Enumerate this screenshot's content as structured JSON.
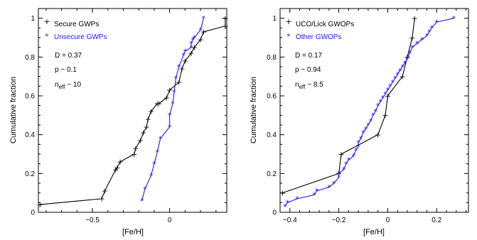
{
  "chart_data": [
    {
      "type": "line",
      "xlabel": "[Fe/H]",
      "ylabel": "Cumulative fraction",
      "xlim": [
        -0.85,
        0.37
      ],
      "ylim": [
        0,
        1.05
      ],
      "x_ticks": [
        -0.5,
        0
      ],
      "x_tick_labels": [
        "−0.5",
        "0"
      ],
      "y_ticks": [
        0,
        0.2,
        0.4,
        0.6,
        0.8,
        1
      ],
      "y_tick_labels": [
        "0",
        "0.2",
        "0.4",
        "0.6",
        "0.8",
        "1"
      ],
      "series": [
        {
          "name": "Secure GWPs",
          "marker": "+",
          "color": "#000000",
          "x": [
            -0.84,
            -0.44,
            -0.42,
            -0.35,
            -0.34,
            -0.32,
            -0.23,
            -0.22,
            -0.19,
            -0.17,
            -0.15,
            -0.14,
            -0.12,
            -0.08,
            -0.07,
            -0.02,
            0.0,
            0.06,
            0.08,
            0.1,
            0.14,
            0.16,
            0.2,
            0.22,
            0.36,
            0.36
          ],
          "y": [
            0.04,
            0.07,
            0.11,
            0.22,
            0.23,
            0.26,
            0.3,
            0.33,
            0.37,
            0.41,
            0.44,
            0.48,
            0.52,
            0.56,
            0.56,
            0.59,
            0.63,
            0.67,
            0.74,
            0.78,
            0.82,
            0.85,
            0.89,
            0.93,
            0.96,
            1.0
          ]
        },
        {
          "name": "Unsecure GWPs",
          "marker": "*",
          "color": "#1a1aff",
          "x": [
            -0.18,
            -0.16,
            -0.12,
            -0.1,
            -0.08,
            -0.06,
            0.0,
            0.0,
            0.02,
            0.03,
            0.04,
            0.06,
            0.09,
            0.1,
            0.14,
            0.14,
            0.15,
            0.16,
            0.2,
            0.22
          ],
          "y": [
            0.06,
            0.12,
            0.19,
            0.25,
            0.31,
            0.38,
            0.44,
            0.5,
            0.56,
            0.62,
            0.69,
            0.75,
            0.81,
            0.83,
            0.85,
            0.87,
            0.89,
            0.9,
            0.94,
            1.0
          ]
        }
      ],
      "legend": [
        "Secure GWPs",
        "Unsecure GWPs"
      ],
      "annotations": {
        "d": "D = 0.37",
        "p": "p ~ 0.1",
        "n_base": "n",
        "n_sub": "eff",
        "n_value": "~ 10"
      }
    },
    {
      "type": "line",
      "xlabel": "[Fe/H]",
      "ylabel": "Cumulative fraction",
      "xlim": [
        -0.44,
        0.33
      ],
      "ylim": [
        0,
        1.05
      ],
      "x_ticks": [
        -0.4,
        -0.2,
        0,
        0.2
      ],
      "x_tick_labels": [
        "−0.4",
        "−0.2",
        "0",
        "0.2"
      ],
      "y_ticks": [
        0,
        0.2,
        0.4,
        0.6,
        0.8,
        1
      ],
      "y_tick_labels": [
        "0",
        "0.2",
        "0.4",
        "0.6",
        "0.8",
        "1"
      ],
      "series": [
        {
          "name": "UCO/Lick GWOPs",
          "marker": "+",
          "color": "#000000",
          "x": [
            -0.43,
            -0.2,
            -0.19,
            -0.04,
            -0.01,
            0.0,
            0.06,
            0.08,
            0.08,
            0.1,
            0.11
          ],
          "y": [
            0.1,
            0.2,
            0.3,
            0.4,
            0.5,
            0.6,
            0.7,
            0.8,
            0.8,
            0.9,
            1.0
          ],
          "segments": [
            [
              -0.43,
              0.1
            ],
            [
              -0.2,
              0.2
            ],
            [
              -0.19,
              0.3
            ],
            [
              -0.04,
              0.4
            ],
            [
              -0.01,
              0.5
            ],
            [
              0.0,
              0.6
            ],
            [
              0.06,
              0.7
            ],
            [
              0.08,
              0.8
            ],
            [
              0.08,
              0.8
            ],
            [
              0.1,
              0.9
            ],
            [
              0.11,
              1.0
            ]
          ]
        },
        {
          "name": "Other GWOPs",
          "marker": "*",
          "color": "#1a1aff",
          "x": [
            -0.42,
            -0.41,
            -0.37,
            -0.3,
            -0.29,
            -0.24,
            -0.22,
            -0.2,
            -0.2,
            -0.18,
            -0.17,
            -0.16,
            -0.14,
            -0.13,
            -0.12,
            -0.12,
            -0.11,
            -0.1,
            -0.09,
            -0.08,
            -0.07,
            -0.06,
            -0.05,
            -0.04,
            -0.03,
            -0.02,
            -0.01,
            0.0,
            0.01,
            0.02,
            0.03,
            0.04,
            0.05,
            0.06,
            0.07,
            0.08,
            0.09,
            0.1,
            0.12,
            0.14,
            0.16,
            0.17,
            0.18,
            0.2,
            0.27
          ],
          "y": [
            0.03,
            0.05,
            0.07,
            0.09,
            0.11,
            0.13,
            0.15,
            0.18,
            0.2,
            0.22,
            0.25,
            0.27,
            0.29,
            0.32,
            0.34,
            0.36,
            0.38,
            0.41,
            0.43,
            0.45,
            0.47,
            0.5,
            0.52,
            0.55,
            0.57,
            0.59,
            0.61,
            0.63,
            0.65,
            0.67,
            0.69,
            0.71,
            0.73,
            0.75,
            0.77,
            0.79,
            0.82,
            0.85,
            0.87,
            0.89,
            0.91,
            0.93,
            0.95,
            0.98,
            1.0
          ]
        }
      ],
      "legend": [
        "UCO/Lick GWOPs",
        "Other GWOPs"
      ],
      "annotations": {
        "d": "D = 0.17",
        "p": "p ~ 0.94",
        "n_base": "n",
        "n_sub": "eff",
        "n_value": "~ 8.5"
      }
    }
  ]
}
